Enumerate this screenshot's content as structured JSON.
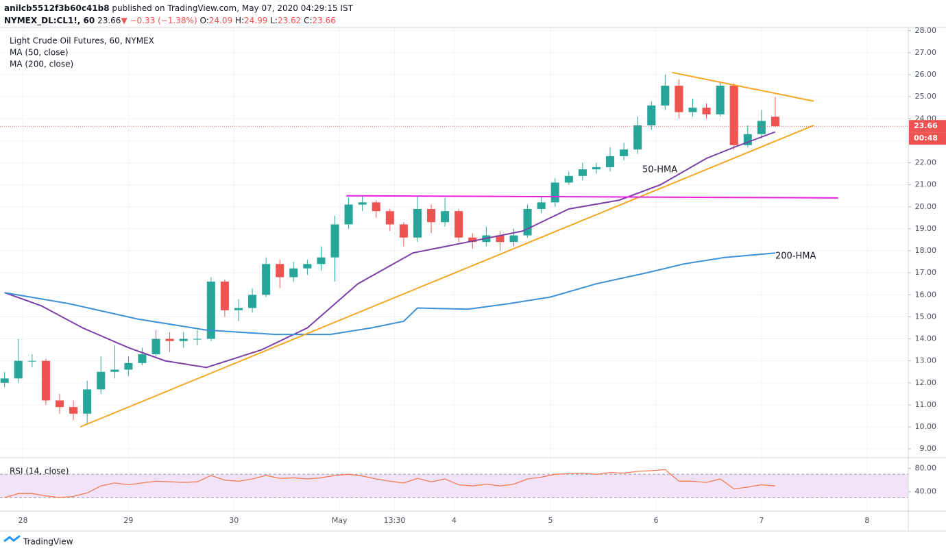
{
  "header": {
    "publisher": "anilcb5512f3b60c41b8",
    "published": "published on TradingView.com, May 07, 2020 04:29:15 IST",
    "symbol": "NYMEX_DL:CL1!, 60",
    "change_arrow": "▼",
    "change": "−0.33 (−1.38%)",
    "o_label": "O:",
    "h_label": "H:",
    "l_label": "L:",
    "c_label": "C:"
  },
  "footer": {
    "brand": "TradingView"
  },
  "chart_data": [
    {
      "type": "candlestick",
      "title": "Light Crude Oil Futures, 60, NYMEX",
      "indicators": [
        "MA (50, close)",
        "MA (200, close)"
      ],
      "up_color": "#26a69a",
      "down_color": "#ef5350",
      "grid": true,
      "countdown": "00:48",
      "x": [
        0,
        3,
        6,
        9,
        12,
        15,
        18,
        21,
        24,
        27,
        30,
        33,
        36,
        39,
        42,
        45,
        48,
        51,
        54,
        57,
        60,
        63,
        66,
        69,
        72,
        75,
        78,
        81,
        84,
        87,
        90,
        93,
        96,
        99,
        102,
        105,
        108,
        111,
        114,
        117,
        120,
        123,
        126,
        129,
        132,
        135,
        138,
        141,
        144,
        147,
        150,
        153,
        156,
        159,
        162,
        165,
        168
      ],
      "open": [
        12.0,
        12.2,
        13.0,
        13.0,
        11.2,
        10.9,
        10.6,
        11.7,
        12.5,
        12.6,
        12.9,
        13.3,
        14.0,
        13.9,
        14.0,
        14.0,
        16.6,
        15.3,
        15.4,
        16.0,
        17.4,
        16.8,
        17.2,
        17.4,
        17.7,
        19.2,
        20.1,
        20.2,
        19.8,
        19.2,
        18.6,
        19.9,
        19.3,
        19.8,
        18.6,
        18.4,
        18.7,
        18.4,
        18.7,
        19.9,
        20.2,
        21.1,
        21.4,
        21.7,
        21.8,
        22.3,
        22.6,
        23.7,
        24.6,
        25.5,
        24.3,
        24.5,
        24.2,
        25.5,
        22.8,
        23.3,
        24.09
      ],
      "high": [
        12.5,
        14.0,
        13.3,
        13.1,
        11.5,
        11.2,
        12.1,
        13.2,
        13.7,
        13.2,
        13.6,
        14.4,
        14.3,
        14.3,
        14.4,
        16.8,
        16.7,
        15.8,
        16.3,
        17.7,
        17.6,
        17.5,
        17.6,
        18.2,
        19.6,
        20.4,
        20.5,
        20.3,
        19.9,
        19.3,
        20.5,
        20.1,
        20.4,
        19.9,
        18.8,
        19.1,
        18.9,
        19.0,
        20.1,
        20.5,
        21.3,
        21.6,
        22.0,
        22.0,
        22.7,
        22.9,
        24.1,
        24.8,
        26.0,
        25.8,
        24.9,
        24.7,
        25.7,
        25.6,
        23.7,
        24.4,
        24.99
      ],
      "low": [
        11.8,
        12.0,
        12.7,
        11.0,
        10.6,
        10.3,
        10.1,
        11.5,
        12.2,
        12.3,
        12.8,
        13.2,
        13.4,
        13.6,
        13.7,
        13.9,
        15.0,
        14.8,
        15.2,
        15.9,
        16.3,
        16.6,
        16.9,
        17.1,
        16.6,
        19.0,
        19.8,
        19.5,
        18.9,
        18.2,
        18.4,
        18.8,
        19.1,
        18.4,
        18.1,
        18.2,
        18.0,
        18.2,
        18.6,
        19.7,
        20.0,
        21.0,
        21.2,
        21.5,
        21.6,
        22.1,
        22.4,
        23.5,
        24.4,
        24.0,
        24.1,
        24.0,
        24.1,
        22.6,
        22.7,
        23.1,
        23.62
      ],
      "close": [
        12.2,
        13.0,
        13.0,
        11.2,
        10.9,
        10.6,
        11.7,
        12.5,
        12.6,
        12.9,
        13.3,
        14.0,
        13.9,
        14.0,
        14.0,
        16.6,
        15.3,
        15.4,
        16.0,
        17.4,
        16.8,
        17.2,
        17.4,
        17.7,
        19.2,
        20.1,
        20.2,
        19.8,
        19.2,
        18.6,
        19.9,
        19.3,
        19.8,
        18.6,
        18.4,
        18.7,
        18.4,
        18.7,
        19.9,
        20.2,
        21.1,
        21.4,
        21.7,
        21.8,
        22.3,
        22.6,
        23.7,
        24.6,
        25.5,
        24.3,
        24.5,
        24.2,
        25.5,
        22.8,
        23.3,
        23.9,
        23.66
      ],
      "lines": [
        {
          "name": "50-HMA",
          "color": "#7b3fa8",
          "x": [
            0,
            8,
            17,
            27,
            35,
            44,
            56,
            66,
            77,
            89,
            101,
            113,
            123,
            134,
            143,
            153,
            159,
            168
          ],
          "values": [
            16.1,
            15.5,
            14.5,
            13.6,
            13.0,
            12.7,
            13.5,
            14.5,
            16.5,
            17.9,
            18.4,
            18.9,
            19.9,
            20.3,
            21.0,
            22.2,
            22.7,
            23.4
          ]
        },
        {
          "name": "200-HMA",
          "color": "#3d8fd6",
          "x": [
            0,
            14,
            29,
            44,
            59,
            71,
            80,
            87,
            90,
            101,
            110,
            119,
            129,
            140,
            148,
            157,
            168
          ],
          "values": [
            16.1,
            15.6,
            14.9,
            14.4,
            14.2,
            14.2,
            14.5,
            14.8,
            15.4,
            15.35,
            15.6,
            15.9,
            16.5,
            17.0,
            17.4,
            17.7,
            17.9
          ]
        }
      ],
      "trend_lines": [
        {
          "color": "#f5a623",
          "x": [
            16.5,
            176.4
          ],
          "y": [
            10.0,
            23.7
          ]
        },
        {
          "color": "#f5a623",
          "x": [
            145.5,
            176.4
          ],
          "y": [
            26.1,
            24.8
          ]
        },
        {
          "color": "#e91ee0",
          "x": [
            74.5,
            181.7
          ],
          "y": [
            20.5,
            20.4
          ]
        }
      ],
      "xlim": [
        -1,
        197
      ],
      "xticks": [
        {
          "value": 4,
          "label": "28"
        },
        {
          "value": 27,
          "label": "29"
        },
        {
          "value": 50,
          "label": "30"
        },
        {
          "value": 73,
          "label": "May"
        },
        {
          "value": 85,
          "label": "13:30"
        },
        {
          "value": 98,
          "label": "4"
        },
        {
          "value": 119,
          "label": "5"
        },
        {
          "value": 142,
          "label": "6"
        },
        {
          "value": 165,
          "label": "7"
        },
        {
          "value": 188,
          "label": "8"
        }
      ],
      "ylim": [
        8.6,
        29.3
      ],
      "yticks": [
        {
          "value": 9,
          "label": "9.00"
        },
        {
          "value": 10,
          "label": "10.00"
        },
        {
          "value": 11,
          "label": "11.00"
        },
        {
          "value": 12,
          "label": "12.00"
        },
        {
          "value": 13,
          "label": "13.00"
        },
        {
          "value": 14,
          "label": "14.00"
        },
        {
          "value": 15,
          "label": "15.00"
        },
        {
          "value": 16,
          "label": "16.00"
        },
        {
          "value": 17,
          "label": "17.00"
        },
        {
          "value": 18,
          "label": "18.00"
        },
        {
          "value": 19,
          "label": "19.00"
        },
        {
          "value": 20,
          "label": "20.00"
        },
        {
          "value": 21,
          "label": "21.00"
        },
        {
          "value": 22,
          "label": "22.00"
        },
        {
          "value": 23,
          "label": "23.00"
        },
        {
          "value": 24,
          "label": "24.00"
        },
        {
          "value": 25,
          "label": "25.00"
        },
        {
          "value": 26,
          "label": "26.00"
        },
        {
          "value": 27,
          "label": "27.00"
        },
        {
          "value": 28,
          "label": "28.00"
        }
      ]
    },
    {
      "type": "line",
      "title": "RSI (14, close)",
      "color": "#f07b52",
      "band": [
        30,
        70
      ],
      "band_color": "#f3e3f8",
      "x": [
        0,
        3,
        6,
        9,
        12,
        15,
        18,
        21,
        24,
        27,
        30,
        33,
        36,
        39,
        42,
        45,
        48,
        51,
        54,
        57,
        60,
        63,
        66,
        69,
        72,
        75,
        78,
        81,
        84,
        87,
        90,
        93,
        96,
        99,
        102,
        105,
        108,
        111,
        114,
        117,
        120,
        123,
        126,
        129,
        132,
        135,
        138,
        141,
        144,
        147,
        150,
        153,
        156,
        159,
        162,
        165,
        168
      ],
      "values": [
        30,
        37,
        37,
        33,
        30,
        32,
        38,
        50,
        55,
        52,
        55,
        58,
        57,
        56,
        57,
        68,
        60,
        58,
        62,
        68,
        63,
        64,
        62,
        64,
        68,
        70,
        67,
        62,
        58,
        55,
        63,
        57,
        62,
        52,
        50,
        53,
        50,
        53,
        62,
        65,
        70,
        71,
        72,
        70,
        73,
        72,
        75,
        76,
        78,
        58,
        58,
        56,
        62,
        45,
        48,
        52,
        50
      ],
      "xlim": [
        -1,
        197
      ],
      "ylim": [
        8,
        96
      ],
      "yticks": [
        {
          "value": 40,
          "label": "40.00"
        },
        {
          "value": 80,
          "label": "80.00"
        }
      ]
    }
  ]
}
